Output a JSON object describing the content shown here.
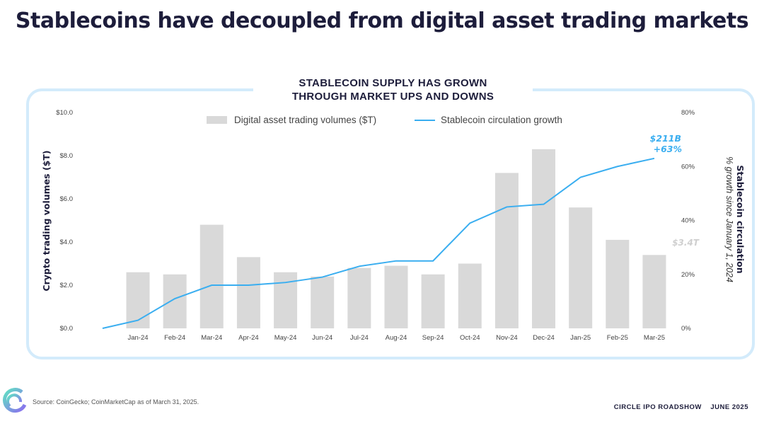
{
  "page": {
    "title": "Stablecoins have decoupled from digital asset trading markets",
    "source": "Source: CoinGecko; CoinMarketCap as of March 31, 2025.",
    "footer_left": "CIRCLE IPO ROADSHOW",
    "footer_right": "JUNE 2025"
  },
  "chart_data": {
    "type": "bar+line",
    "title_lines": [
      "STABLECOIN SUPPLY HAS GROWN",
      "THROUGH  MARKET UPS AND DOWNS"
    ],
    "categories": [
      "Jan-24",
      "Feb-24",
      "Mar-24",
      "Apr-24",
      "May-24",
      "Jun-24",
      "Jul-24",
      "Aug-24",
      "Sep-24",
      "Oct-24",
      "Nov-24",
      "Dec-24",
      "Jan-25",
      "Feb-25",
      "Mar-25"
    ],
    "ylabel_left": "Crypto trading volumes ($T)",
    "ylabel_right": "Stablecoin circulation",
    "ylabel_right_sub": "% growth since January 1, 2024",
    "ylim_left": [
      0,
      10
    ],
    "ylim_right": [
      0,
      80
    ],
    "yticks_left": [
      "$0.0",
      "$2.0",
      "$4.0",
      "$6.0",
      "$8.0",
      "$10.0"
    ],
    "yticks_right": [
      "0%",
      "20%",
      "40%",
      "60%",
      "80%"
    ],
    "grid": false,
    "legend_position": "top",
    "series": [
      {
        "name": "Digital asset trading volumes ($T)",
        "type": "bar",
        "axis": "left",
        "color": "#d9d9d9",
        "values": [
          2.6,
          2.5,
          4.8,
          3.3,
          2.6,
          2.4,
          2.8,
          2.9,
          2.5,
          3.0,
          7.2,
          8.3,
          5.6,
          4.1,
          3.4
        ]
      },
      {
        "name": "Stablecoin circulation growth",
        "type": "line",
        "axis": "right",
        "color": "#3aaef0",
        "start_value": 0,
        "values": [
          3,
          11,
          16,
          16,
          17,
          19,
          23,
          25,
          25,
          39,
          45,
          46,
          56,
          60,
          63
        ]
      }
    ],
    "annotations": {
      "line_end_value": "$211B",
      "line_end_pct": "+63%",
      "bar_end_label": "$3.4T"
    }
  }
}
